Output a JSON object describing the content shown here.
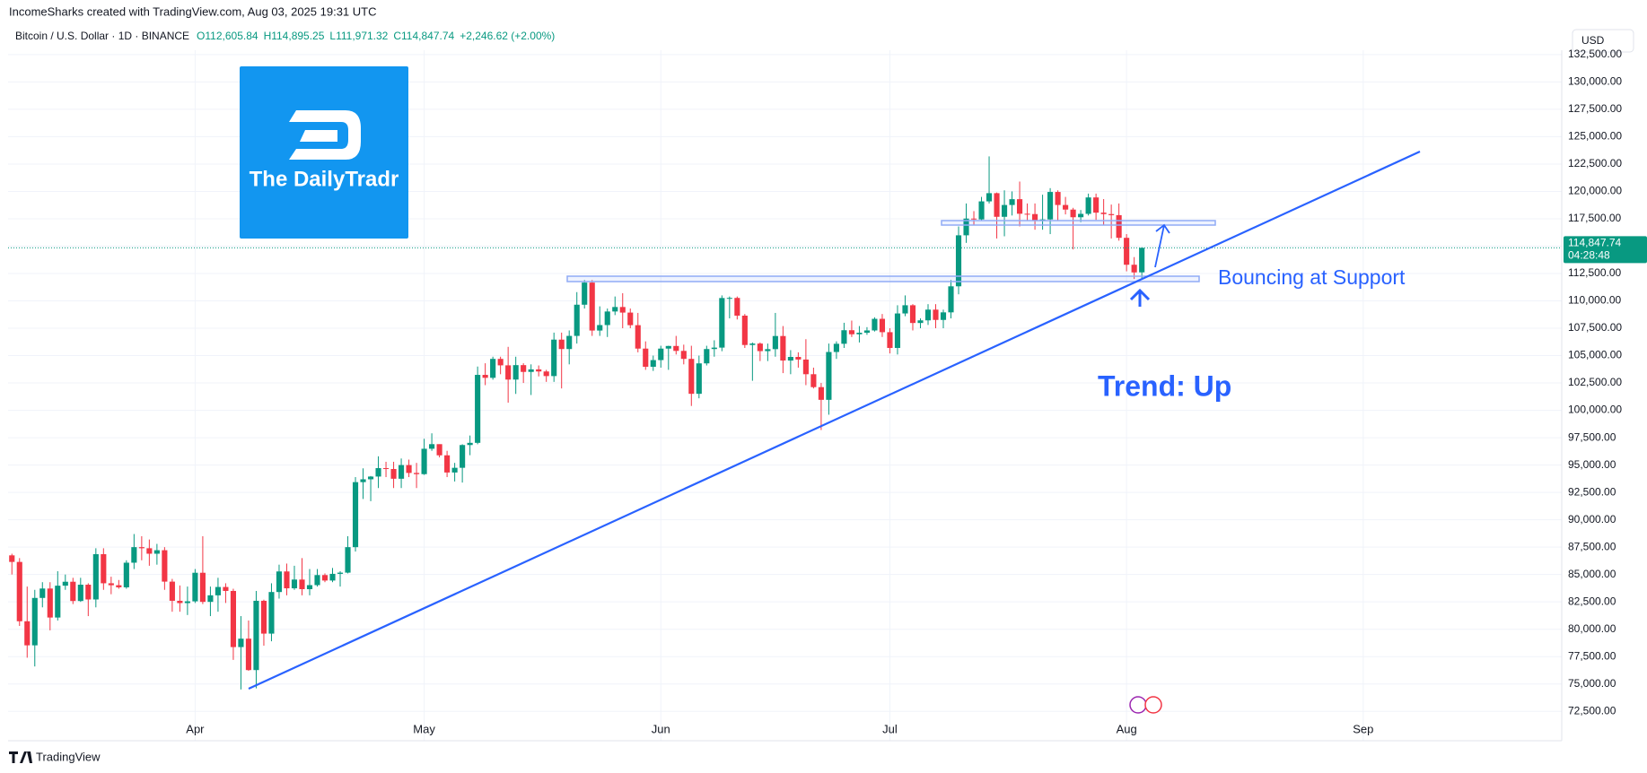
{
  "header": {
    "credit": "IncomeSharks created with TradingView.com, Aug 03, 2025 19:31 UTC",
    "footer": "TradingView",
    "logo_text": "The DailyTradr"
  },
  "chart_data": {
    "type": "candlestick",
    "title": "Bitcoin / U.S. Dollar · 1D · BINANCE",
    "legend_values": [
      "O112,605.84",
      "H114,895.25",
      "L111,971.32",
      "C114,847.74",
      "+2,246.62 (+2.00%)"
    ],
    "currency": "USD",
    "up_color": "#089981",
    "down_color": "#f23645",
    "grid": true,
    "open": [
      86750,
      86150,
      80730,
      78530,
      82860,
      83720,
      81070,
      83980,
      84340,
      82580,
      84070,
      82720,
      86860,
      84200,
      84020,
      83830,
      86080,
      87500,
      87400,
      86900,
      87220,
      84350,
      82600,
      82390,
      82550,
      85160,
      82500,
      83100,
      83860,
      83500,
      78370,
      79140,
      76270,
      82600,
      79600,
      83400,
      85280,
      83740,
      84540,
      83660,
      84030,
      84950,
      84450,
      85060,
      85170,
      87500,
      93440,
      93700,
      93950,
      94720,
      94640,
      93750,
      95000,
      94280,
      94170,
      96490,
      96910,
      95890,
      94320,
      94750,
      96830,
      97030,
      103240,
      102970,
      104700,
      104110,
      102810,
      104130,
      103510,
      103740,
      103550,
      103130,
      106460,
      105600,
      106800,
      109650,
      111670,
      107290,
      107790,
      109030,
      109440,
      108930,
      107780,
      105640,
      103980,
      104590,
      105640,
      105880,
      105430,
      104700,
      101510,
      104290,
      105600,
      105730,
      110260,
      110270,
      108650,
      105970,
      106100,
      105410,
      105590,
      106790,
      104550,
      104880,
      104640,
      103300,
      102120,
      100960,
      105330,
      106080,
      107320,
      106950,
      107090,
      107300,
      108360,
      107140,
      105700,
      108850,
      109600,
      107980,
      108220,
      109200,
      108260,
      108950,
      111330,
      115990,
      117520,
      117440,
      119090,
      119840,
      117680,
      118760,
      119290,
      117960,
      117930,
      117300,
      117440,
      119950,
      118760,
      118340,
      117640,
      117950,
      119450,
      118060,
      117930,
      117830,
      115760,
      113300,
      112605.84
    ],
    "high": [
      86900,
      86500,
      83900,
      83600,
      84300,
      84300,
      85300,
      85000,
      84700,
      84700,
      84200,
      87400,
      87400,
      84800,
      84500,
      86300,
      88700,
      88500,
      88200,
      87800,
      87500,
      84600,
      84000,
      83900,
      85500,
      88500,
      83900,
      84700,
      84200,
      83700,
      81200,
      80800,
      83500,
      82700,
      84200,
      85900,
      86000,
      85800,
      86500,
      85500,
      85500,
      85100,
      85600,
      85300,
      88500,
      93900,
      94700,
      94000,
      95800,
      95300,
      95300,
      95600,
      95500,
      95200,
      97400,
      97900,
      96900,
      96300,
      95200,
      96900,
      97700,
      104000,
      104300,
      104900,
      104900,
      105800,
      104900,
      104300,
      104200,
      104100,
      103700,
      107100,
      107100,
      107300,
      110800,
      111900,
      111900,
      109500,
      109300,
      110400,
      110700,
      109300,
      108900,
      106300,
      105000,
      105900,
      105900,
      106800,
      106000,
      105900,
      105000,
      105900,
      106400,
      110500,
      110400,
      110400,
      108800,
      106200,
      106200,
      106100,
      108900,
      107700,
      105500,
      105300,
      106500,
      103900,
      102500,
      106100,
      106300,
      108000,
      108200,
      107700,
      107600,
      108500,
      108800,
      107500,
      109600,
      110500,
      109700,
      108400,
      109700,
      109700,
      109200,
      111900,
      116800,
      118900,
      118200,
      119500,
      123200,
      119900,
      120100,
      120000,
      120900,
      118900,
      118900,
      119700,
      120300,
      120100,
      119500,
      118500,
      118300,
      119800,
      119800,
      119300,
      118800,
      118900,
      116100,
      114000,
      114895.25
    ],
    "low": [
      85000,
      80300,
      77400,
      76600,
      82000,
      79900,
      80800,
      83600,
      82300,
      82500,
      81200,
      82000,
      83600,
      83200,
      83700,
      83700,
      85500,
      86300,
      85800,
      85900,
      83600,
      81600,
      81600,
      81300,
      82400,
      82300,
      81200,
      81600,
      82400,
      77200,
      74500,
      76200,
      74600,
      78500,
      78900,
      82800,
      83100,
      83600,
      83100,
      83100,
      83900,
      84300,
      84300,
      83900,
      85100,
      87100,
      91900,
      91700,
      92900,
      93900,
      92900,
      92900,
      93900,
      92900,
      94100,
      96300,
      95700,
      93900,
      93500,
      93400,
      95900,
      96900,
      102300,
      102800,
      103300,
      100700,
      101500,
      102500,
      101400,
      103100,
      102600,
      102600,
      102000,
      104200,
      106100,
      109300,
      106800,
      106800,
      106700,
      108700,
      107500,
      107500,
      105300,
      103700,
      103600,
      103900,
      103700,
      105100,
      104200,
      100400,
      101100,
      104100,
      104900,
      105400,
      108400,
      108300,
      105700,
      102700,
      104500,
      104500,
      104900,
      103400,
      103300,
      103900,
      102300,
      102000,
      98200,
      99600,
      104700,
      105700,
      106700,
      106200,
      106900,
      107200,
      106700,
      105200,
      105100,
      108600,
      107300,
      107500,
      107800,
      107500,
      107500,
      108400,
      110600,
      115300,
      116900,
      117300,
      118900,
      115700,
      115900,
      117800,
      116800,
      117300,
      116500,
      116500,
      116100,
      117300,
      117900,
      114700,
      117200,
      117800,
      117400,
      116900,
      115700,
      115500,
      112700,
      112000,
      111971.32
    ],
    "close": [
      86150,
      80730,
      78530,
      82860,
      83720,
      81070,
      83980,
      84340,
      82580,
      84070,
      82720,
      86860,
      84200,
      84020,
      83830,
      86080,
      87500,
      87400,
      86900,
      87220,
      84350,
      82600,
      82390,
      82550,
      85160,
      82500,
      83100,
      83860,
      83500,
      78370,
      79140,
      76270,
      82600,
      79600,
      83400,
      85280,
      83740,
      84540,
      83660,
      84030,
      84950,
      84450,
      85060,
      85170,
      87500,
      93440,
      93700,
      93950,
      94720,
      94640,
      93750,
      95000,
      94280,
      94170,
      96490,
      96910,
      95890,
      94320,
      94750,
      96830,
      97030,
      103240,
      102970,
      104700,
      104110,
      102810,
      104130,
      103510,
      103740,
      103550,
      103130,
      106460,
      105600,
      106800,
      109650,
      111670,
      107290,
      107790,
      109030,
      109440,
      108930,
      107780,
      105640,
      103980,
      104590,
      105640,
      105880,
      105430,
      104700,
      101510,
      104290,
      105600,
      105730,
      110260,
      110270,
      108650,
      105970,
      106100,
      105410,
      105590,
      106790,
      104550,
      104880,
      104640,
      103300,
      102120,
      100960,
      105330,
      106080,
      107320,
      106950,
      107090,
      107300,
      108360,
      107140,
      105700,
      108850,
      109600,
      107980,
      108220,
      109200,
      108260,
      108950,
      111330,
      115990,
      117520,
      117440,
      119090,
      119840,
      117680,
      118760,
      119290,
      117960,
      117930,
      117300,
      117440,
      119950,
      118760,
      118340,
      117640,
      117950,
      119450,
      118060,
      117930,
      117830,
      115760,
      113300,
      112600,
      114847.74
    ],
    "xlim": [
      -0.5,
      203
    ],
    "xticks": [
      {
        "value": 24,
        "label": "Apr"
      },
      {
        "value": 54,
        "label": "May"
      },
      {
        "value": 85,
        "label": "Jun"
      },
      {
        "value": 115,
        "label": "Jul"
      },
      {
        "value": 146,
        "label": "Aug"
      },
      {
        "value": 177,
        "label": "Sep"
      }
    ],
    "ylim": [
      71700,
      132900
    ],
    "yticks": [
      {
        "value": 72500,
        "label": "72,500.00"
      },
      {
        "value": 75000,
        "label": "75,000.00"
      },
      {
        "value": 77500,
        "label": "77,500.00"
      },
      {
        "value": 80000,
        "label": "80,000.00"
      },
      {
        "value": 82500,
        "label": "82,500.00"
      },
      {
        "value": 85000,
        "label": "85,000.00"
      },
      {
        "value": 87500,
        "label": "87,500.00"
      },
      {
        "value": 90000,
        "label": "90,000.00"
      },
      {
        "value": 92500,
        "label": "92,500.00"
      },
      {
        "value": 95000,
        "label": "95,000.00"
      },
      {
        "value": 97500,
        "label": "97,500.00"
      },
      {
        "value": 100000,
        "label": "100,000.00"
      },
      {
        "value": 102500,
        "label": "102,500.00"
      },
      {
        "value": 105000,
        "label": "105,000.00"
      },
      {
        "value": 107500,
        "label": "107,500.00"
      },
      {
        "value": 110000,
        "label": "110,000.00"
      },
      {
        "value": 112500,
        "label": "112,500.00"
      },
      {
        "value": 115000,
        "label": "115,000.00"
      },
      {
        "value": 117500,
        "label": "117,500.00"
      },
      {
        "value": 120000,
        "label": "120,000.00"
      },
      {
        "value": 122500,
        "label": "122,500.00"
      },
      {
        "value": 125000,
        "label": "125,000.00"
      },
      {
        "value": 127500,
        "label": "127,500.00"
      },
      {
        "value": 130000,
        "label": "130,000.00"
      },
      {
        "value": 132500,
        "label": "132,500.00"
      }
    ],
    "last_price": {
      "value": 114847.74,
      "label": "114,847.74",
      "countdown": "04:28:48"
    },
    "annotations": [
      "Bouncing at Support",
      "Trend: Up"
    ]
  }
}
